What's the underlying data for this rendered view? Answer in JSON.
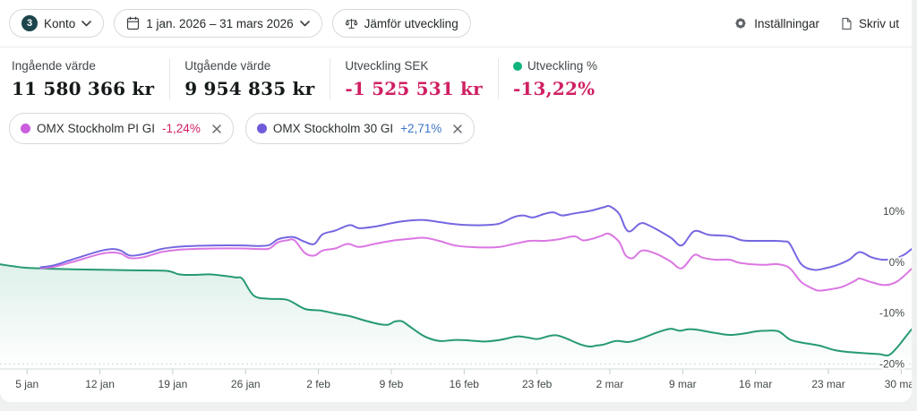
{
  "toolbar": {
    "account_badge": "3",
    "account_label": "Konto",
    "date_range": "1 jan. 2026 – 31 mars 2026",
    "compare_label": "Jämför utveckling",
    "settings_label": "Inställningar",
    "print_label": "Skriv ut"
  },
  "stats": [
    {
      "label": "Ingående värde",
      "value": "11 580 366 kr"
    },
    {
      "label": "Utgående värde",
      "value": "9 954 835 kr"
    },
    {
      "label": "Utveckling SEK",
      "value": "-1 525 531 kr"
    },
    {
      "label": "Utveckling %",
      "value": "-13,22%",
      "dot_color": "#0db47c"
    }
  ],
  "chips": [
    {
      "name": "OMX Stockholm PI GI",
      "change": "-1,24%",
      "dot_color": "#ca5edd",
      "change_color": "#d02064"
    },
    {
      "name": "OMX Stockholm 30 GI",
      "change": "+2,71%",
      "dot_color": "#6f5cdb",
      "change_color": "#3b76c8"
    }
  ],
  "chart_data": {
    "type": "line",
    "x_unit": "days since 1 jan 2026",
    "x_range": [
      1.4,
      89
    ],
    "y_range": [
      -21,
      19
    ],
    "grid": "dashed line at -20% only",
    "legend_position": "chips above chart",
    "y_ticks": [
      {
        "value": 10,
        "label": "10%"
      },
      {
        "value": 0,
        "label": "0%"
      },
      {
        "value": -10,
        "label": "-10%"
      },
      {
        "value": -20,
        "label": "-20%"
      }
    ],
    "x_ticks": [
      {
        "day": 4,
        "label": "5 jan"
      },
      {
        "day": 11,
        "label": "12 jan"
      },
      {
        "day": 18,
        "label": "19 jan"
      },
      {
        "day": 25,
        "label": "26 jan"
      },
      {
        "day": 32,
        "label": "2 feb"
      },
      {
        "day": 39,
        "label": "9 feb"
      },
      {
        "day": 46,
        "label": "16 feb"
      },
      {
        "day": 53,
        "label": "23 feb"
      },
      {
        "day": 60,
        "label": "2 mar"
      },
      {
        "day": 67,
        "label": "9 mar"
      },
      {
        "day": 74,
        "label": "16 mar"
      },
      {
        "day": 81,
        "label": "23 mar"
      },
      {
        "day": 88,
        "label": "30 mar"
      }
    ],
    "series": [
      {
        "name": "Konto (utveckling %)",
        "color": "#269a72",
        "area_fill": true,
        "final_value_pct": -13.22,
        "points": [
          [
            1.4,
            -0.4
          ],
          [
            2.7,
            -0.8
          ],
          [
            4,
            -1.1
          ],
          [
            6.6,
            -1.3
          ],
          [
            11,
            -1.5
          ],
          [
            14.3,
            -1.6
          ],
          [
            17.4,
            -1.7
          ],
          [
            18.6,
            -2.4
          ],
          [
            19.9,
            -2.5
          ],
          [
            21.5,
            -2.4
          ],
          [
            23,
            -2.7
          ],
          [
            24.1,
            -3.0
          ],
          [
            24.7,
            -3.3
          ],
          [
            25.8,
            -6.6
          ],
          [
            27.3,
            -7.2
          ],
          [
            29,
            -7.4
          ],
          [
            30.7,
            -9.2
          ],
          [
            32.2,
            -9.5
          ],
          [
            33.6,
            -10.1
          ],
          [
            35,
            -10.6
          ],
          [
            36.5,
            -11.5
          ],
          [
            37.9,
            -12.2
          ],
          [
            38.7,
            -12.3
          ],
          [
            39.3,
            -11.7
          ],
          [
            40,
            -11.6
          ],
          [
            40.8,
            -12.7
          ],
          [
            42.2,
            -14.6
          ],
          [
            43.6,
            -15.5
          ],
          [
            45.1,
            -15.3
          ],
          [
            46.5,
            -15.4
          ],
          [
            48,
            -15.6
          ],
          [
            49.4,
            -15.3
          ],
          [
            50.8,
            -14.7
          ],
          [
            51.4,
            -14.6
          ],
          [
            52.3,
            -14.9
          ],
          [
            53.1,
            -15.1
          ],
          [
            54.2,
            -14.5
          ],
          [
            54.9,
            -14.4
          ],
          [
            55.7,
            -14.9
          ],
          [
            57.2,
            -16.2
          ],
          [
            58.1,
            -16.6
          ],
          [
            58.7,
            -16.4
          ],
          [
            59.4,
            -16.2
          ],
          [
            60.6,
            -15.5
          ],
          [
            61.8,
            -15.7
          ],
          [
            62.9,
            -15.1
          ],
          [
            64.6,
            -13.8
          ],
          [
            65.8,
            -13.1
          ],
          [
            66.7,
            -13.5
          ],
          [
            67.5,
            -13.2
          ],
          [
            68.4,
            -13.3
          ],
          [
            70.1,
            -13.9
          ],
          [
            71.5,
            -14.3
          ],
          [
            73,
            -14.0
          ],
          [
            74.1,
            -13.6
          ],
          [
            75,
            -13.5
          ],
          [
            76.2,
            -13.6
          ],
          [
            77.3,
            -15.2
          ],
          [
            78.4,
            -15.8
          ],
          [
            80.1,
            -16.4
          ],
          [
            81.6,
            -17.3
          ],
          [
            83.1,
            -17.7
          ],
          [
            84.4,
            -17.9
          ],
          [
            85.9,
            -18.1
          ],
          [
            86.8,
            -18.3
          ],
          [
            87.6,
            -16.8
          ],
          [
            88.3,
            -15.0
          ],
          [
            89,
            -13.2
          ]
        ]
      },
      {
        "name": "OMX Stockholm PI GI",
        "color": "#db76e3",
        "area_fill": false,
        "final_value_pct": -1.24,
        "points": [
          [
            5.3,
            -1.2
          ],
          [
            6.6,
            -0.9
          ],
          [
            8.3,
            0.0
          ],
          [
            11,
            1.6
          ],
          [
            12.2,
            1.9
          ],
          [
            13,
            1.7
          ],
          [
            13.9,
            0.8
          ],
          [
            15.2,
            1.0
          ],
          [
            16.9,
            2.0
          ],
          [
            18.3,
            2.4
          ],
          [
            19.9,
            2.6
          ],
          [
            22.1,
            2.7
          ],
          [
            24.7,
            2.7
          ],
          [
            26.4,
            2.6
          ],
          [
            27.3,
            2.7
          ],
          [
            28.1,
            3.9
          ],
          [
            29,
            4.3
          ],
          [
            29.7,
            4.3
          ],
          [
            30.7,
            1.8
          ],
          [
            31.6,
            1.3
          ],
          [
            32.4,
            2.3
          ],
          [
            33.6,
            2.7
          ],
          [
            34.8,
            3.6
          ],
          [
            35.9,
            3.0
          ],
          [
            37.4,
            3.6
          ],
          [
            39.3,
            4.3
          ],
          [
            40.8,
            4.6
          ],
          [
            42.2,
            4.8
          ],
          [
            43.6,
            4.2
          ],
          [
            45.1,
            3.3
          ],
          [
            46.5,
            3.0
          ],
          [
            48,
            2.9
          ],
          [
            49.4,
            3.0
          ],
          [
            50.8,
            3.6
          ],
          [
            52.3,
            4.2
          ],
          [
            53.7,
            4.2
          ],
          [
            55.1,
            4.5
          ],
          [
            56.6,
            5.1
          ],
          [
            57.4,
            4.3
          ],
          [
            58.3,
            4.6
          ],
          [
            59.2,
            5.2
          ],
          [
            59.9,
            5.6
          ],
          [
            60.9,
            4.0
          ],
          [
            61.5,
            1.4
          ],
          [
            62.2,
            0.8
          ],
          [
            63.1,
            2.3
          ],
          [
            64.4,
            1.7
          ],
          [
            65.8,
            0.2
          ],
          [
            66.9,
            -1.2
          ],
          [
            68.1,
            1.4
          ],
          [
            68.9,
            0.9
          ],
          [
            70.1,
            0.5
          ],
          [
            71.5,
            0.5
          ],
          [
            72.4,
            -0.1
          ],
          [
            73.6,
            -0.4
          ],
          [
            75,
            -0.5
          ],
          [
            76.2,
            -0.4
          ],
          [
            77.3,
            -1.2
          ],
          [
            78.4,
            -3.9
          ],
          [
            79.6,
            -5.3
          ],
          [
            80.1,
            -5.6
          ],
          [
            81.3,
            -5.3
          ],
          [
            82.4,
            -4.8
          ],
          [
            83.6,
            -3.6
          ],
          [
            84,
            -3.2
          ],
          [
            85.1,
            -3.9
          ],
          [
            86.4,
            -4.5
          ],
          [
            87.6,
            -3.8
          ],
          [
            89,
            -1.3
          ]
        ]
      },
      {
        "name": "OMX Stockholm 30 GI",
        "color": "#7567e0",
        "area_fill": false,
        "final_value_pct": 2.71,
        "points": [
          [
            5.3,
            -1.0
          ],
          [
            6.6,
            -0.6
          ],
          [
            8.3,
            0.5
          ],
          [
            11,
            2.2
          ],
          [
            12.2,
            2.6
          ],
          [
            13,
            2.3
          ],
          [
            13.9,
            1.3
          ],
          [
            15.2,
            1.6
          ],
          [
            16.9,
            2.6
          ],
          [
            18.3,
            3.0
          ],
          [
            19.9,
            3.2
          ],
          [
            22.1,
            3.3
          ],
          [
            24.7,
            3.3
          ],
          [
            26.4,
            3.2
          ],
          [
            27.3,
            3.4
          ],
          [
            28.1,
            4.5
          ],
          [
            29,
            4.9
          ],
          [
            29.7,
            4.9
          ],
          [
            30.7,
            4.0
          ],
          [
            31.6,
            3.6
          ],
          [
            32.4,
            5.5
          ],
          [
            33.6,
            6.2
          ],
          [
            35,
            7.3
          ],
          [
            35.9,
            6.7
          ],
          [
            37.4,
            7.0
          ],
          [
            39.3,
            7.8
          ],
          [
            40.8,
            8.2
          ],
          [
            42.2,
            8.3
          ],
          [
            43.6,
            7.9
          ],
          [
            45.1,
            7.5
          ],
          [
            46.5,
            7.3
          ],
          [
            48,
            7.3
          ],
          [
            49.4,
            7.6
          ],
          [
            50.8,
            8.9
          ],
          [
            51.7,
            9.2
          ],
          [
            52.6,
            8.8
          ],
          [
            53.7,
            9.5
          ],
          [
            54.6,
            9.8
          ],
          [
            55.4,
            9.2
          ],
          [
            56.6,
            9.6
          ],
          [
            58.1,
            10.1
          ],
          [
            59.4,
            10.8
          ],
          [
            60,
            11.0
          ],
          [
            60.9,
            9.5
          ],
          [
            61.5,
            6.7
          ],
          [
            62,
            6.1
          ],
          [
            62.9,
            7.6
          ],
          [
            63.7,
            7.3
          ],
          [
            65.8,
            4.9
          ],
          [
            66.9,
            3.3
          ],
          [
            68.1,
            6.1
          ],
          [
            69.5,
            5.4
          ],
          [
            71.5,
            5.1
          ],
          [
            72.7,
            4.3
          ],
          [
            74.1,
            4.2
          ],
          [
            75.6,
            4.2
          ],
          [
            76.7,
            4.1
          ],
          [
            77.3,
            3.6
          ],
          [
            78.4,
            -0.4
          ],
          [
            79.6,
            -1.5
          ],
          [
            80.7,
            -1.2
          ],
          [
            81.8,
            -0.6
          ],
          [
            83,
            0.5
          ],
          [
            84,
            2.0
          ],
          [
            85.1,
            1.0
          ],
          [
            86.2,
            0.5
          ],
          [
            87.4,
            0.7
          ],
          [
            88.3,
            1.5
          ],
          [
            89,
            2.6
          ]
        ]
      }
    ],
    "style": {
      "axis_line_color": "#e2e5e5",
      "tick_color": "#c7cccc",
      "dashed_grid_color": "#d4d9d9",
      "axis_label_color": "#434949",
      "area_fill_color": "rgba(38,154,114,0.15)"
    }
  }
}
